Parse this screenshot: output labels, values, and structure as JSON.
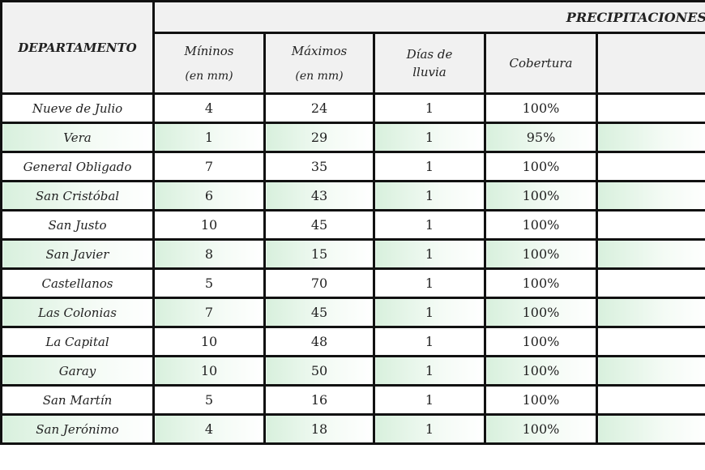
{
  "table": {
    "group_header": "PRECIPITACIONES",
    "columns": [
      {
        "label": "DEPARTAMENTO",
        "sub": ""
      },
      {
        "label": "Míninos",
        "sub": "(en mm)"
      },
      {
        "label": "Máximos",
        "sub": "(en mm)"
      },
      {
        "label": "Días de",
        "sub": "lluvia"
      },
      {
        "label": "Cobertura",
        "sub": ""
      },
      {
        "label": "",
        "sub": ""
      }
    ],
    "rows": [
      [
        "Nueve de Julio",
        "4",
        "24",
        "1",
        "100%"
      ],
      [
        "Vera",
        "1",
        "29",
        "1",
        "95%"
      ],
      [
        "General Obligado",
        "7",
        "35",
        "1",
        "100%"
      ],
      [
        "San Cristóbal",
        "6",
        "43",
        "1",
        "100%"
      ],
      [
        "San Justo",
        "10",
        "45",
        "1",
        "100%"
      ],
      [
        "San Javier",
        "8",
        "15",
        "1",
        "100%"
      ],
      [
        "Castellanos",
        "5",
        "70",
        "1",
        "100%"
      ],
      [
        "Las Colonias",
        "7",
        "45",
        "1",
        "100%"
      ],
      [
        "La Capital",
        "10",
        "48",
        "1",
        "100%"
      ],
      [
        "Garay",
        "10",
        "50",
        "1",
        "100%"
      ],
      [
        "San Martín",
        "5",
        "16",
        "1",
        "100%"
      ],
      [
        "San Jerónimo",
        "4",
        "18",
        "1",
        "100%"
      ]
    ]
  },
  "colors": {
    "alt_row": "#d8f0dd",
    "header_bg": "#f1f1f1",
    "border": "#111111"
  }
}
